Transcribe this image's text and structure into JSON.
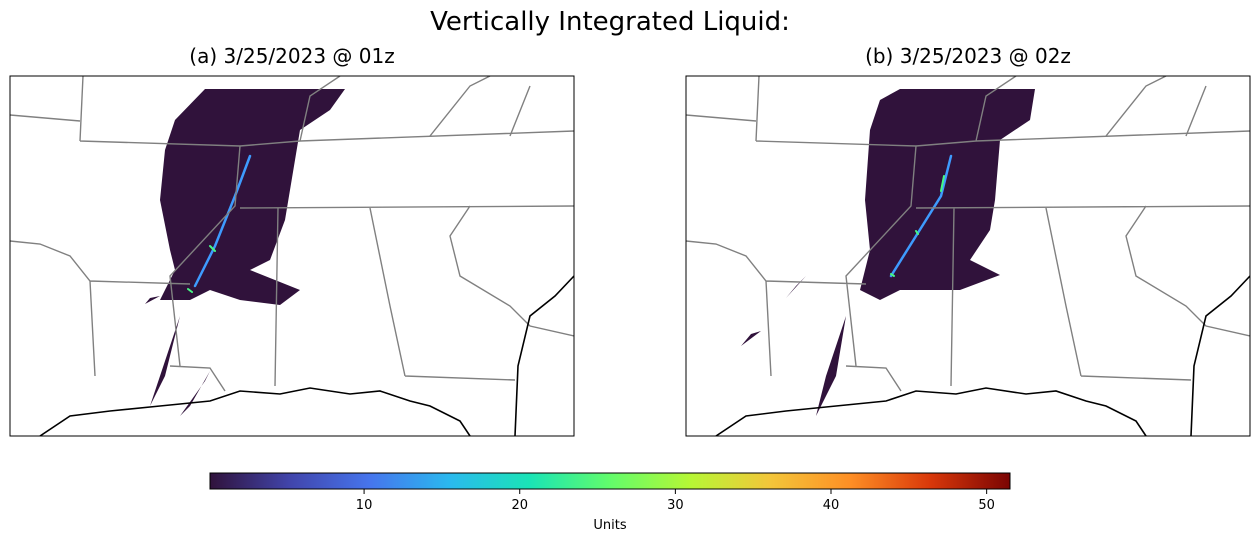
{
  "title": "Vertically Integrated Liquid:",
  "panels": [
    {
      "title": "(a) 3/25/2023 @ 01z"
    },
    {
      "title": "(b) 3/25/2023 @ 02z"
    }
  ],
  "colorbar": {
    "lim": [
      0.1,
      51.5
    ],
    "ticks": [
      10,
      20,
      30,
      40,
      50
    ],
    "label": "Units"
  }
}
